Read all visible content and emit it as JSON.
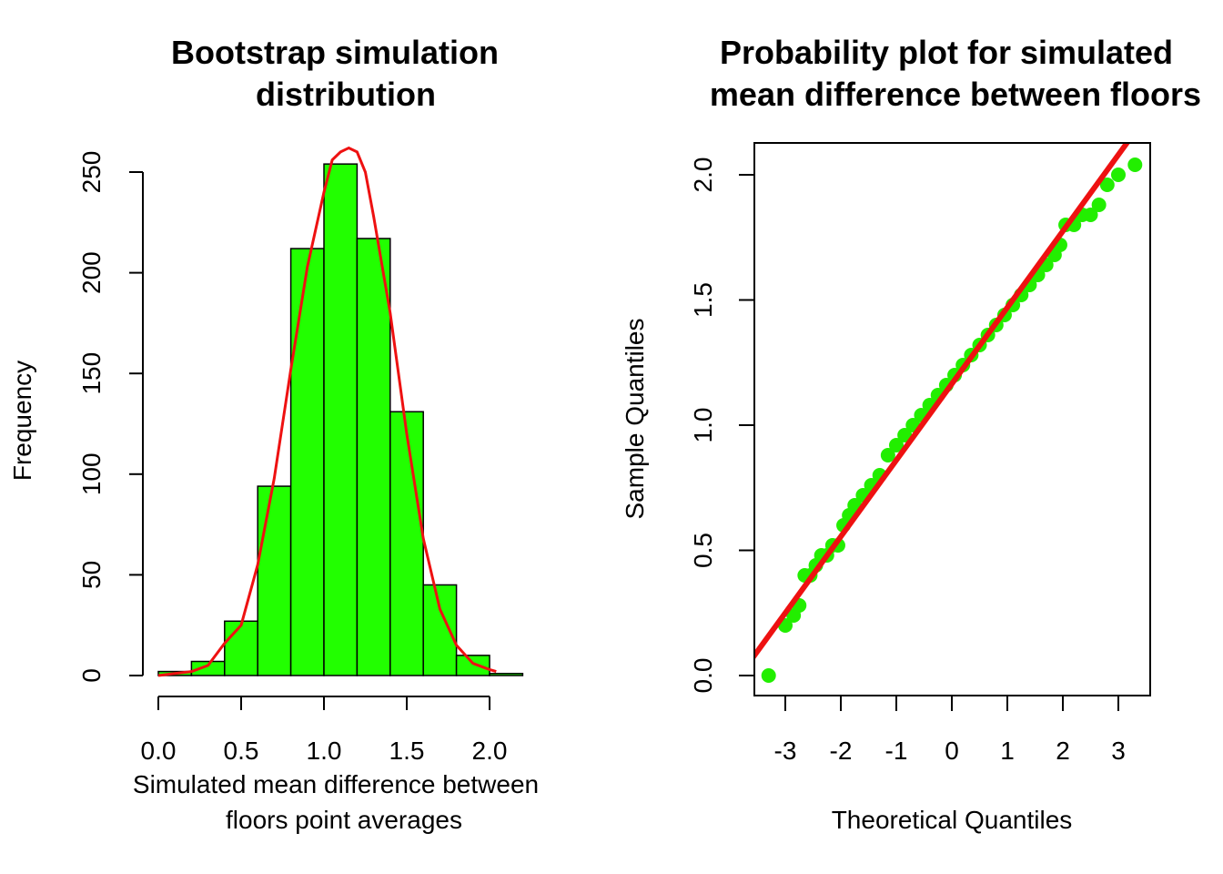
{
  "chart_data": [
    {
      "type": "bar",
      "subtype": "histogram",
      "title_lines": [
        "Bootstrap simulation",
        "distribution"
      ],
      "xlabel_lines": [
        "Simulated mean difference between",
        "floors point averages"
      ],
      "ylabel": "Frequency",
      "bins": [
        {
          "from": 0.0,
          "to": 0.2,
          "count": 2
        },
        {
          "from": 0.2,
          "to": 0.4,
          "count": 7
        },
        {
          "from": 0.4,
          "to": 0.6,
          "count": 27
        },
        {
          "from": 0.6,
          "to": 0.8,
          "count": 94
        },
        {
          "from": 0.8,
          "to": 1.0,
          "count": 212
        },
        {
          "from": 1.0,
          "to": 1.2,
          "count": 254
        },
        {
          "from": 1.2,
          "to": 1.4,
          "count": 217
        },
        {
          "from": 1.4,
          "to": 1.6,
          "count": 131
        },
        {
          "from": 1.6,
          "to": 1.8,
          "count": 45
        },
        {
          "from": 1.8,
          "to": 2.0,
          "count": 10
        },
        {
          "from": 2.0,
          "to": 2.2,
          "count": 1
        }
      ],
      "density_curve": {
        "x": [
          0.0,
          0.1,
          0.2,
          0.3,
          0.4,
          0.5,
          0.6,
          0.7,
          0.8,
          0.9,
          1.0,
          1.05,
          1.1,
          1.15,
          1.2,
          1.25,
          1.3,
          1.4,
          1.5,
          1.6,
          1.7,
          1.8,
          1.9,
          2.0,
          2.04
        ],
        "y": [
          0,
          1,
          2,
          5,
          16,
          25,
          55,
          98,
          152,
          203,
          240,
          256,
          260,
          262,
          260,
          250,
          228,
          180,
          120,
          68,
          33,
          15,
          6,
          3,
          2
        ]
      },
      "x_ticks": [
        0.0,
        0.5,
        1.0,
        1.5,
        2.0
      ],
      "x_tick_labels": [
        "0.0",
        "0.5",
        "1.0",
        "1.5",
        "2.0"
      ],
      "y_ticks": [
        0,
        50,
        100,
        150,
        200,
        250
      ],
      "y_tick_labels": [
        "0",
        "50",
        "100",
        "150",
        "200",
        "250"
      ],
      "xlim": [
        0.0,
        2.2
      ],
      "ylim": [
        0,
        265
      ],
      "bar_color": "#22ff00",
      "curve_color": "#ee1111",
      "grid": false
    },
    {
      "type": "scatter",
      "subtype": "qq-plot",
      "title_lines": [
        "Probability plot for simulated",
        "mean difference between floors"
      ],
      "xlabel": "Theoretical Quantiles",
      "ylabel": "Sample Quantiles",
      "points": {
        "x": [
          -3.3,
          -3.0,
          -2.85,
          -2.75,
          -2.65,
          -2.55,
          -2.45,
          -2.35,
          -2.25,
          -2.15,
          -2.05,
          -1.95,
          -1.85,
          -1.75,
          -1.6,
          -1.45,
          -1.3,
          -1.15,
          -1.0,
          -0.85,
          -0.7,
          -0.55,
          -0.4,
          -0.25,
          -0.1,
          0.05,
          0.2,
          0.35,
          0.5,
          0.65,
          0.8,
          0.95,
          1.1,
          1.25,
          1.4,
          1.55,
          1.7,
          1.85,
          1.95,
          2.05,
          2.2,
          2.35,
          2.5,
          2.65,
          2.8,
          3.0,
          3.3
        ],
        "y": [
          0.0,
          0.2,
          0.24,
          0.28,
          0.4,
          0.4,
          0.44,
          0.48,
          0.48,
          0.52,
          0.52,
          0.6,
          0.64,
          0.68,
          0.72,
          0.76,
          0.8,
          0.88,
          0.92,
          0.96,
          1.0,
          1.04,
          1.08,
          1.12,
          1.16,
          1.2,
          1.24,
          1.28,
          1.32,
          1.36,
          1.4,
          1.44,
          1.48,
          1.52,
          1.56,
          1.6,
          1.64,
          1.68,
          1.72,
          1.8,
          1.8,
          1.84,
          1.84,
          1.88,
          1.96,
          2.0,
          2.04
        ]
      },
      "reference_line": {
        "intercept": 1.165,
        "slope": 0.305
      },
      "x_ticks": [
        -3,
        -2,
        -1,
        0,
        1,
        2,
        3
      ],
      "x_tick_labels": [
        "-3",
        "-2",
        "-1",
        "0",
        "1",
        "2",
        "3"
      ],
      "y_ticks": [
        0.0,
        0.5,
        1.0,
        1.5,
        2.0
      ],
      "y_tick_labels": [
        "0.0",
        "0.5",
        "1.0",
        "1.5",
        "2.0"
      ],
      "xlim": [
        -3.57,
        3.57
      ],
      "ylim": [
        -0.08,
        2.12
      ],
      "point_color": "#22ee00",
      "line_color": "#ee1111",
      "grid": false
    }
  ]
}
